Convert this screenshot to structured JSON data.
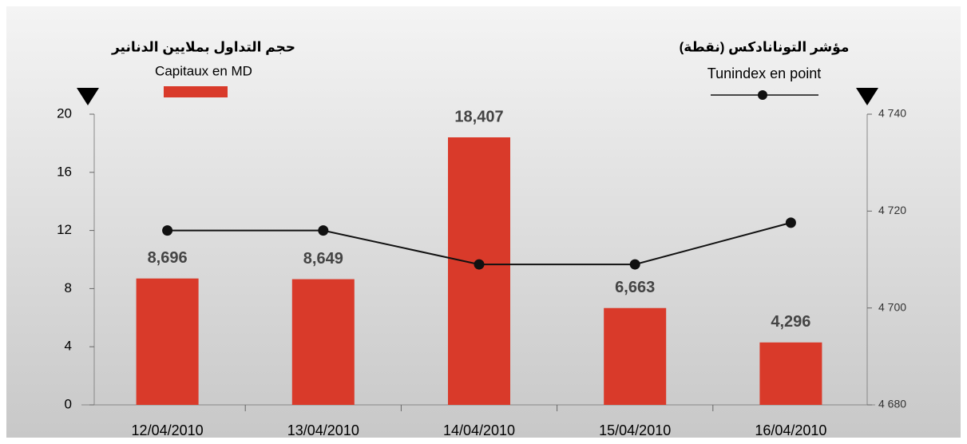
{
  "chart_data": {
    "type": "bar-line",
    "categories": [
      "12/04/2010",
      "13/04/2010",
      "14/04/2010",
      "15/04/2010",
      "16/04/2010"
    ],
    "series": [
      {
        "name": "Capitaux en MD",
        "name_ar": "حجم التداول بملايين الدنانير",
        "type": "bar",
        "color": "#d93a2a",
        "values": [
          8.696,
          8.649,
          18.407,
          6.663,
          4.296
        ],
        "value_labels": [
          "8,696",
          "8,649",
          "18,407",
          "6,663",
          "4,296"
        ]
      },
      {
        "name": "Tunindex en point",
        "name_ar": "مؤشر التونانادكس (نقطة)",
        "type": "line",
        "axis": "y2",
        "color": "#111111",
        "values": [
          4716,
          4716,
          4709,
          4709,
          4717.6
        ]
      }
    ],
    "ylim": [
      0,
      20
    ],
    "yticks": [
      0,
      4,
      8,
      12,
      16,
      20
    ],
    "y2lim": [
      4680,
      4740
    ],
    "y2ticks": [
      {
        "value": 4680,
        "label": "4 680"
      },
      {
        "value": 4700,
        "label": "4 700"
      },
      {
        "value": 4720,
        "label": "4 720"
      },
      {
        "value": 4740,
        "label": "4 740"
      }
    ]
  }
}
